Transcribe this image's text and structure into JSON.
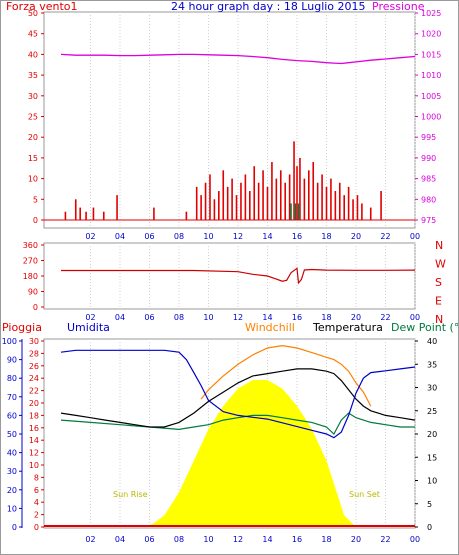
{
  "colors": {
    "red": "#e00000",
    "magenta": "#dd00dd",
    "blue": "#0000cc",
    "orange": "#ff8000",
    "black": "#000000",
    "green": "#007a3d",
    "darkred": "#cc0000",
    "sun": "#ffff00",
    "frame": "#9a9a9a"
  },
  "header": {
    "left_label": "Forza vento1",
    "title": "24 hour graph day : 18 Luglio 2015",
    "right_label": "Pressione"
  },
  "top_panel": {
    "left_ticks": [
      "0",
      "5",
      "10",
      "15",
      "20",
      "25",
      "30",
      "35",
      "40",
      "45",
      "50"
    ],
    "right_ticks": [
      "975",
      "980",
      "985",
      "990",
      "995",
      "1000",
      "1005",
      "1010",
      "1015",
      "1020",
      "1025"
    ],
    "time_ticks": [
      "02",
      "04",
      "06",
      "08",
      "10",
      "12",
      "14",
      "16",
      "18",
      "20",
      "22",
      "00"
    ]
  },
  "mid_panel": {
    "left_ticks": [
      "0",
      "90",
      "180",
      "270",
      "360"
    ],
    "compass": [
      "N",
      "W",
      "S",
      "E",
      "N"
    ],
    "time_ticks": [
      "02",
      "04",
      "06",
      "08",
      "10",
      "12",
      "14",
      "16",
      "18",
      "20",
      "22",
      "00"
    ]
  },
  "bottom_panel": {
    "headers": {
      "rain": "Pioggia",
      "humidity": "Umidita",
      "windchill": "Windchill",
      "temperature": "Temperatura",
      "dewpoint": "Dew Point (°C"
    },
    "hum_ticks": [
      "0",
      "10",
      "20",
      "30",
      "40",
      "50",
      "60",
      "70",
      "80",
      "90",
      "100"
    ],
    "rain_ticks": [
      "0",
      "2",
      "4",
      "6",
      "8",
      "10",
      "12",
      "14",
      "16",
      "18",
      "20",
      "22",
      "24",
      "26",
      "28",
      "30"
    ],
    "temp_ticks": [
      "0",
      "5",
      "10",
      "15",
      "20",
      "25",
      "30",
      "35",
      "40"
    ],
    "sunrise_label": "Sun Rise",
    "sunset_label": "Sun Set",
    "time_ticks": [
      "02",
      "04",
      "06",
      "08",
      "10",
      "12",
      "14",
      "16",
      "18",
      "20",
      "22",
      "00"
    ]
  },
  "chart_data": [
    {
      "type": "line",
      "name": "wind-and-pressure",
      "x_unit": "hour of day",
      "series": [
        {
          "name": "Forza vento1",
          "axis": "left",
          "kind": "bars",
          "x": [
            0.3,
            1.0,
            1.3,
            1.7,
            2.2,
            2.9,
            3.8,
            6.3,
            8.5,
            9.2,
            9.5,
            9.8,
            10.1,
            10.4,
            10.7,
            11.0,
            11.3,
            11.6,
            11.9,
            12.2,
            12.5,
            12.8,
            13.1,
            13.4,
            13.7,
            14.0,
            14.3,
            14.6,
            14.9,
            15.2,
            15.5,
            15.8,
            16.0,
            16.2,
            16.5,
            16.8,
            17.1,
            17.4,
            17.7,
            18.0,
            18.3,
            18.6,
            18.9,
            19.2,
            19.5,
            19.8,
            20.1,
            20.4,
            21.0,
            21.7
          ],
          "values": [
            2,
            5,
            3,
            2,
            3,
            2,
            6,
            3,
            2,
            8,
            6,
            9,
            11,
            5,
            7,
            12,
            8,
            10,
            6,
            9,
            11,
            7,
            13,
            9,
            12,
            8,
            14,
            10,
            12,
            9,
            11,
            19,
            13,
            15,
            10,
            12,
            14,
            9,
            11,
            8,
            10,
            7,
            9,
            6,
            8,
            5,
            6,
            4,
            3,
            7
          ]
        },
        {
          "name": "Pressione",
          "axis": "right",
          "x": [
            0,
            1,
            2,
            3,
            4,
            5,
            6,
            7,
            8,
            9,
            10,
            11,
            12,
            13,
            14,
            15,
            16,
            17,
            18,
            18.5,
            19,
            19.5,
            20,
            21,
            22,
            23,
            24
          ],
          "values": [
            1015.0,
            1014.8,
            1014.8,
            1014.8,
            1014.7,
            1014.7,
            1014.8,
            1014.9,
            1015.0,
            1015.0,
            1014.9,
            1014.8,
            1014.7,
            1014.5,
            1014.2,
            1013.8,
            1013.5,
            1013.3,
            1013.0,
            1012.9,
            1012.8,
            1013.0,
            1013.2,
            1013.6,
            1013.9,
            1014.2,
            1014.5
          ]
        }
      ],
      "ylim_left": [
        0,
        50
      ],
      "ylim_right": [
        975,
        1025
      ]
    },
    {
      "type": "line",
      "name": "wind-direction",
      "x_unit": "hour of day",
      "series": [
        {
          "name": "direction",
          "x": [
            0,
            3,
            6,
            9,
            12,
            13,
            14,
            14.5,
            15,
            15.3,
            15.6,
            16,
            16.1,
            16.3,
            16.5,
            17,
            18,
            20,
            22,
            24
          ],
          "values": [
            212,
            212,
            212,
            212,
            205,
            190,
            180,
            165,
            150,
            155,
            200,
            225,
            140,
            160,
            215,
            218,
            214,
            213,
            213,
            214
          ]
        }
      ],
      "ylim": [
        0,
        360
      ]
    },
    {
      "type": "line",
      "name": "temperature-humidity",
      "x_unit": "hour of day",
      "series": [
        {
          "name": "Umidita",
          "axis": "left",
          "x": [
            0,
            1,
            2,
            3,
            4,
            5,
            6,
            7,
            8,
            8.5,
            9,
            9.5,
            10,
            11,
            12,
            13,
            14,
            15,
            16,
            17,
            18,
            18.5,
            19,
            19.5,
            20,
            20.5,
            21,
            22,
            23,
            24
          ],
          "values": [
            94,
            95,
            95,
            95,
            95,
            95,
            95,
            95,
            94,
            90,
            83,
            76,
            68,
            62,
            60,
            59,
            58,
            56,
            54,
            52,
            50,
            48,
            51,
            60,
            72,
            80,
            83,
            84,
            85,
            86
          ]
        },
        {
          "name": "Windchill",
          "axis": "right",
          "x": [
            9.5,
            10,
            11,
            12,
            13,
            14,
            15,
            16,
            17,
            18,
            18.5,
            19,
            19.5,
            20,
            20.5,
            21
          ],
          "values": [
            27.5,
            29.5,
            32.5,
            35,
            37,
            38.5,
            39,
            38.5,
            37.5,
            36.5,
            36,
            35,
            33.5,
            31,
            29,
            26
          ]
        },
        {
          "name": "Temperatura",
          "axis": "right",
          "x": [
            0,
            1,
            2,
            3,
            4,
            5,
            6,
            7,
            8,
            9,
            10,
            11,
            12,
            13,
            14,
            15,
            16,
            17,
            18,
            18.5,
            19,
            19.5,
            20,
            20.5,
            21,
            22,
            23,
            24
          ],
          "values": [
            24.5,
            24,
            23.5,
            23,
            22.5,
            22,
            21.5,
            21.5,
            22.5,
            24.5,
            27,
            29,
            31,
            32.5,
            33,
            33.5,
            34,
            34,
            33.5,
            33,
            31.5,
            29.5,
            27.5,
            26,
            25,
            24,
            23.5,
            23
          ]
        },
        {
          "name": "Dew Point",
          "axis": "right",
          "x": [
            0,
            2,
            4,
            6,
            8,
            9,
            10,
            11,
            12,
            13,
            14,
            15,
            16,
            17,
            18,
            18.5,
            19,
            19.5,
            20,
            21,
            22,
            23,
            24
          ],
          "values": [
            23,
            22.5,
            22,
            21.5,
            21,
            21.5,
            22,
            23,
            23.5,
            24,
            24,
            23.5,
            23,
            22.5,
            21.5,
            20,
            23,
            24.5,
            23.5,
            22.5,
            22,
            21.5,
            21.5
          ]
        },
        {
          "name": "Pioggia",
          "axis": "left-rain",
          "x": [
            0,
            24
          ],
          "values": [
            0,
            0
          ]
        },
        {
          "name": "Sun",
          "kind": "area",
          "x": [
            5.5,
            6.2,
            7,
            8,
            9,
            10,
            11,
            12,
            13,
            14,
            15,
            16,
            17,
            18,
            19.2,
            20
          ],
          "values": [
            0,
            1,
            4,
            12,
            23,
            34,
            42,
            48,
            51,
            51,
            48,
            42,
            34,
            23,
            4,
            0
          ]
        }
      ],
      "ylim_left": [
        0,
        100
      ],
      "ylim_right": [
        0,
        40
      ],
      "ylim_rain": [
        0,
        30
      ]
    }
  ]
}
